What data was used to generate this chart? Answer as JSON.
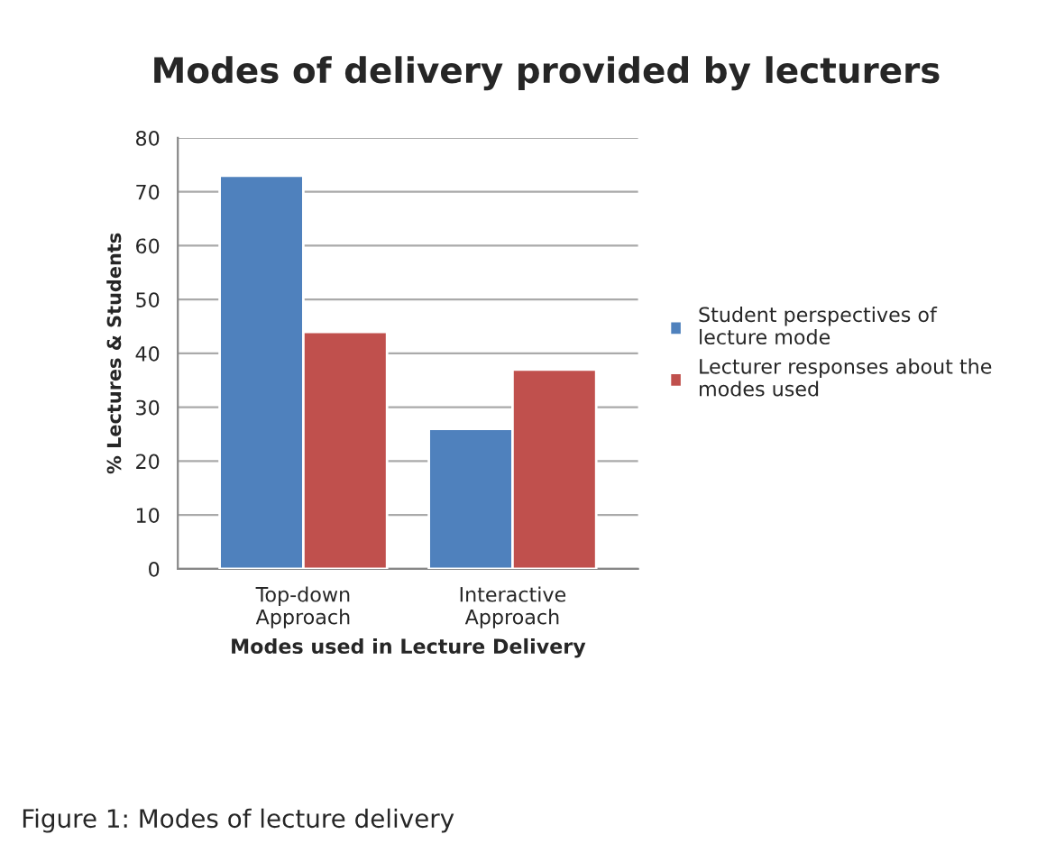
{
  "chart_data": {
    "type": "bar",
    "title": "Modes of delivery provided by lecturers",
    "xlabel": "Modes used in Lecture Delivery",
    "ylabel": "% Lectures & Students",
    "categories": [
      "Top-down\nApproach",
      "Interactive\nApproach"
    ],
    "series": [
      {
        "name": "Student perspectives of\nlecture mode",
        "color": "#4f81bd",
        "values": [
          73,
          26
        ]
      },
      {
        "name": "Lecturer responses about the\nmodes used",
        "color": "#c0504d",
        "values": [
          44,
          37
        ]
      }
    ],
    "ylim": [
      0,
      80
    ],
    "yticks": [
      0,
      10,
      20,
      30,
      40,
      50,
      60,
      70,
      80
    ],
    "grid": "y",
    "legend": "right",
    "annotations": [
      "Figure 1: Modes of lecture delivery"
    ]
  }
}
